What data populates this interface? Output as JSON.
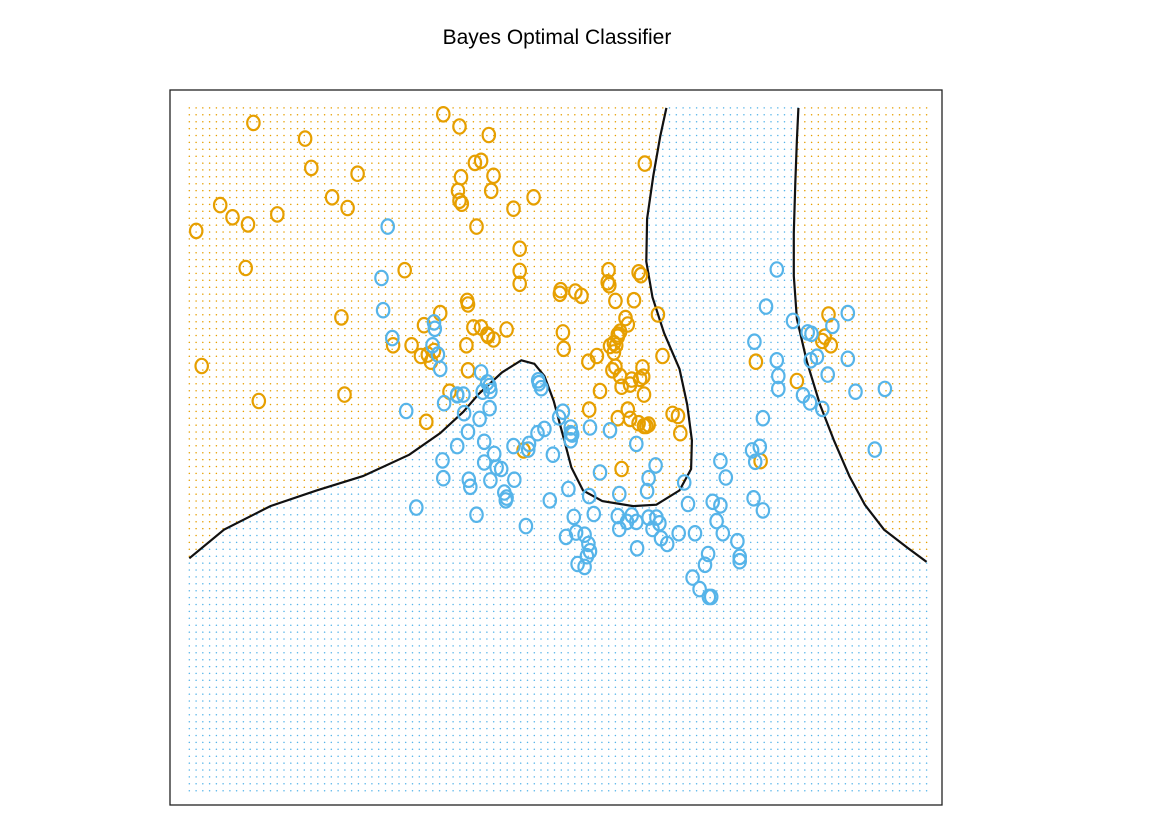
{
  "chart_data": {
    "type": "scatter",
    "title": "Bayes Optimal Classifier",
    "xlabel": "",
    "ylabel": "",
    "xlim": [
      0,
      1
    ],
    "ylim": [
      0,
      1
    ],
    "axes_ticks_shown": false,
    "grid_dots": true,
    "marker": "O",
    "colors": {
      "orange": "#E69F00",
      "blue": "#56B4E9",
      "boundary": "#111111"
    },
    "series": [
      {
        "color": "orange",
        "points": [
          [
            0.034,
            0.803
          ],
          [
            0.041,
            0.614
          ],
          [
            0.065,
            0.839
          ],
          [
            0.081,
            0.822
          ],
          [
            0.098,
            0.751
          ],
          [
            0.101,
            0.812
          ],
          [
            0.108,
            0.954
          ],
          [
            0.115,
            0.565
          ],
          [
            0.139,
            0.826
          ],
          [
            0.175,
            0.932
          ],
          [
            0.183,
            0.891
          ],
          [
            0.21,
            0.85
          ],
          [
            0.222,
            0.682
          ],
          [
            0.226,
            0.574
          ],
          [
            0.23,
            0.835
          ],
          [
            0.243,
            0.883
          ],
          [
            0.289,
            0.643
          ],
          [
            0.304,
            0.748
          ],
          [
            0.313,
            0.643
          ],
          [
            0.325,
            0.628
          ],
          [
            0.334,
            0.63
          ],
          [
            0.338,
            0.62
          ],
          [
            0.342,
            0.635
          ],
          [
            0.35,
            0.688
          ],
          [
            0.354,
            0.966
          ],
          [
            0.329,
            0.671
          ],
          [
            0.332,
            0.536
          ],
          [
            0.375,
            0.949
          ],
          [
            0.362,
            0.578
          ],
          [
            0.377,
            0.878
          ],
          [
            0.373,
            0.859
          ],
          [
            0.375,
            0.845
          ],
          [
            0.378,
            0.841
          ],
          [
            0.384,
            0.643
          ],
          [
            0.393,
            0.668
          ],
          [
            0.397,
            0.809
          ],
          [
            0.386,
            0.7
          ],
          [
            0.385,
            0.705
          ],
          [
            0.395,
            0.898
          ],
          [
            0.403,
            0.901
          ],
          [
            0.386,
            0.608
          ],
          [
            0.403,
            0.668
          ],
          [
            0.411,
            0.658
          ],
          [
            0.419,
            0.651
          ],
          [
            0.412,
            0.656
          ],
          [
            0.413,
            0.937
          ],
          [
            0.416,
            0.859
          ],
          [
            0.419,
            0.88
          ],
          [
            0.436,
            0.665
          ],
          [
            0.453,
            0.778
          ],
          [
            0.453,
            0.747
          ],
          [
            0.453,
            0.729
          ],
          [
            0.445,
            0.834
          ],
          [
            0.458,
            0.496
          ],
          [
            0.471,
            0.85
          ],
          [
            0.505,
            0.715
          ],
          [
            0.506,
            0.72
          ],
          [
            0.509,
            0.661
          ],
          [
            0.51,
            0.638
          ],
          [
            0.525,
            0.718
          ],
          [
            0.533,
            0.712
          ],
          [
            0.542,
            0.62
          ],
          [
            0.543,
            0.553
          ],
          [
            0.553,
            0.628
          ],
          [
            0.557,
            0.579
          ],
          [
            0.569,
            0.727
          ],
          [
            0.567,
            0.731
          ],
          [
            0.568,
            0.748
          ],
          [
            0.57,
            0.642
          ],
          [
            0.573,
            0.608
          ],
          [
            0.575,
            0.633
          ],
          [
            0.577,
            0.613
          ],
          [
            0.578,
            0.643
          ],
          [
            0.575,
            0.646
          ],
          [
            0.577,
            0.705
          ],
          [
            0.58,
            0.541
          ],
          [
            0.58,
            0.655
          ],
          [
            0.58,
            0.658
          ],
          [
            0.583,
            0.6
          ],
          [
            0.585,
            0.585
          ],
          [
            0.585,
            0.47
          ],
          [
            0.583,
            0.662
          ],
          [
            0.59,
            0.681
          ],
          [
            0.593,
            0.672
          ],
          [
            0.596,
            0.588
          ],
          [
            0.596,
            0.54
          ],
          [
            0.593,
            0.553
          ],
          [
            0.598,
            0.595
          ],
          [
            0.601,
            0.706
          ],
          [
            0.607,
            0.745
          ],
          [
            0.607,
            0.534
          ],
          [
            0.61,
            0.741
          ],
          [
            0.609,
            0.596
          ],
          [
            0.613,
            0.599
          ],
          [
            0.612,
            0.612
          ],
          [
            0.614,
            0.574
          ],
          [
            0.614,
            0.53
          ],
          [
            0.617,
            0.53
          ],
          [
            0.615,
            0.897
          ],
          [
            0.62,
            0.532
          ],
          [
            0.632,
            0.686
          ],
          [
            0.638,
            0.628
          ],
          [
            0.658,
            0.544
          ],
          [
            0.661,
            0.52
          ],
          [
            0.759,
            0.62
          ],
          [
            0.765,
            0.481
          ],
          [
            0.812,
            0.593
          ],
          [
            0.845,
            0.649
          ],
          [
            0.853,
            0.686
          ],
          [
            0.848,
            0.655
          ],
          [
            0.856,
            0.643
          ],
          [
            0.651,
            0.547
          ]
        ]
      },
      {
        "color": "blue",
        "points": [
          [
            0.282,
            0.809
          ],
          [
            0.274,
            0.737
          ],
          [
            0.276,
            0.692
          ],
          [
            0.288,
            0.653
          ],
          [
            0.306,
            0.551
          ],
          [
            0.319,
            0.416
          ],
          [
            0.34,
            0.643
          ],
          [
            0.347,
            0.63
          ],
          [
            0.343,
            0.666
          ],
          [
            0.342,
            0.675
          ],
          [
            0.35,
            0.61
          ],
          [
            0.355,
            0.562
          ],
          [
            0.354,
            0.457
          ],
          [
            0.353,
            0.482
          ],
          [
            0.372,
            0.573
          ],
          [
            0.372,
            0.574
          ],
          [
            0.372,
            0.502
          ],
          [
            0.38,
            0.574
          ],
          [
            0.381,
            0.548
          ],
          [
            0.386,
            0.522
          ],
          [
            0.387,
            0.455
          ],
          [
            0.389,
            0.445
          ],
          [
            0.397,
            0.406
          ],
          [
            0.401,
            0.54
          ],
          [
            0.403,
            0.605
          ],
          [
            0.405,
            0.578
          ],
          [
            0.414,
            0.586
          ],
          [
            0.415,
            0.579
          ],
          [
            0.407,
            0.479
          ],
          [
            0.407,
            0.508
          ],
          [
            0.411,
            0.591
          ],
          [
            0.414,
            0.555
          ],
          [
            0.415,
            0.454
          ],
          [
            0.42,
            0.491
          ],
          [
            0.423,
            0.472
          ],
          [
            0.429,
            0.47
          ],
          [
            0.433,
            0.437
          ],
          [
            0.436,
            0.43
          ],
          [
            0.435,
            0.426
          ],
          [
            0.445,
            0.502
          ],
          [
            0.446,
            0.455
          ],
          [
            0.461,
            0.39
          ],
          [
            0.464,
            0.497
          ],
          [
            0.465,
            0.505
          ],
          [
            0.476,
            0.52
          ],
          [
            0.477,
            0.594
          ],
          [
            0.485,
            0.526
          ],
          [
            0.478,
            0.59
          ],
          [
            0.481,
            0.583
          ],
          [
            0.492,
            0.426
          ],
          [
            0.496,
            0.49
          ],
          [
            0.504,
            0.542
          ],
          [
            0.509,
            0.55
          ],
          [
            0.513,
            0.375
          ],
          [
            0.519,
            0.51
          ],
          [
            0.521,
            0.518
          ],
          [
            0.519,
            0.52
          ],
          [
            0.519,
            0.528
          ],
          [
            0.516,
            0.442
          ],
          [
            0.523,
            0.403
          ],
          [
            0.526,
            0.381
          ],
          [
            0.528,
            0.337
          ],
          [
            0.537,
            0.378
          ],
          [
            0.542,
            0.365
          ],
          [
            0.544,
            0.355
          ],
          [
            0.537,
            0.333
          ],
          [
            0.54,
            0.348
          ],
          [
            0.543,
            0.432
          ],
          [
            0.544,
            0.528
          ],
          [
            0.549,
            0.407
          ],
          [
            0.557,
            0.465
          ],
          [
            0.57,
            0.524
          ],
          [
            0.58,
            0.404
          ],
          [
            0.582,
            0.435
          ],
          [
            0.582,
            0.386
          ],
          [
            0.592,
            0.396
          ],
          [
            0.598,
            0.405
          ],
          [
            0.604,
            0.505
          ],
          [
            0.604,
            0.396
          ],
          [
            0.605,
            0.359
          ],
          [
            0.62,
            0.457
          ],
          [
            0.62,
            0.402
          ],
          [
            0.618,
            0.439
          ],
          [
            0.625,
            0.386
          ],
          [
            0.629,
            0.475
          ],
          [
            0.63,
            0.402
          ],
          [
            0.634,
            0.394
          ],
          [
            0.636,
            0.373
          ],
          [
            0.644,
            0.365
          ],
          [
            0.659,
            0.38
          ],
          [
            0.666,
            0.451
          ],
          [
            0.671,
            0.421
          ],
          [
            0.677,
            0.318
          ],
          [
            0.68,
            0.38
          ],
          [
            0.686,
            0.302
          ],
          [
            0.693,
            0.336
          ],
          [
            0.698,
            0.291
          ],
          [
            0.697,
            0.351
          ],
          [
            0.701,
            0.291
          ],
          [
            0.708,
            0.397
          ],
          [
            0.713,
            0.419
          ],
          [
            0.703,
            0.424
          ],
          [
            0.713,
            0.481
          ],
          [
            0.72,
            0.458
          ],
          [
            0.716,
            0.38
          ],
          [
            0.738,
            0.347
          ],
          [
            0.735,
            0.369
          ],
          [
            0.738,
            0.341
          ],
          [
            0.758,
            0.48
          ],
          [
            0.756,
            0.429
          ],
          [
            0.768,
            0.412
          ],
          [
            0.788,
            0.6
          ],
          [
            0.786,
            0.622
          ],
          [
            0.807,
            0.677
          ],
          [
            0.826,
            0.661
          ],
          [
            0.83,
            0.622
          ],
          [
            0.845,
            0.554
          ],
          [
            0.829,
            0.563
          ],
          [
            0.82,
            0.573
          ],
          [
            0.831,
            0.659
          ],
          [
            0.838,
            0.627
          ],
          [
            0.852,
            0.602
          ],
          [
            0.858,
            0.67
          ],
          [
            0.878,
            0.624
          ],
          [
            0.888,
            0.578
          ],
          [
            0.913,
            0.497
          ],
          [
            0.926,
            0.582
          ],
          [
            0.878,
            0.688
          ],
          [
            0.786,
            0.749
          ],
          [
            0.772,
            0.697
          ],
          [
            0.757,
            0.648
          ],
          [
            0.788,
            0.582
          ],
          [
            0.754,
            0.496
          ],
          [
            0.764,
            0.501
          ],
          [
            0.768,
            0.541
          ]
        ]
      }
    ],
    "decision_boundary": [
      [
        [
          0.025,
          0.345
        ],
        [
          0.07,
          0.385
        ],
        [
          0.13,
          0.418
        ],
        [
          0.19,
          0.44
        ],
        [
          0.25,
          0.46
        ],
        [
          0.31,
          0.49
        ],
        [
          0.35,
          0.52
        ],
        [
          0.38,
          0.55
        ],
        [
          0.4,
          0.575
        ],
        [
          0.43,
          0.605
        ],
        [
          0.455,
          0.622
        ],
        [
          0.472,
          0.617
        ],
        [
          0.485,
          0.6
        ],
        [
          0.497,
          0.565
        ],
        [
          0.51,
          0.513
        ],
        [
          0.52,
          0.472
        ],
        [
          0.535,
          0.44
        ],
        [
          0.56,
          0.425
        ],
        [
          0.6,
          0.418
        ],
        [
          0.63,
          0.42
        ],
        [
          0.66,
          0.44
        ],
        [
          0.675,
          0.47
        ],
        [
          0.676,
          0.51
        ],
        [
          0.67,
          0.56
        ],
        [
          0.66,
          0.61
        ],
        [
          0.64,
          0.66
        ],
        [
          0.625,
          0.71
        ],
        [
          0.617,
          0.76
        ],
        [
          0.618,
          0.82
        ],
        [
          0.626,
          0.88
        ],
        [
          0.635,
          0.935
        ],
        [
          0.643,
          0.975
        ]
      ],
      [
        [
          0.814,
          0.975
        ],
        [
          0.812,
          0.93
        ],
        [
          0.81,
          0.87
        ],
        [
          0.808,
          0.8
        ],
        [
          0.808,
          0.74
        ],
        [
          0.812,
          0.68
        ],
        [
          0.825,
          0.62
        ],
        [
          0.842,
          0.56
        ],
        [
          0.86,
          0.51
        ],
        [
          0.88,
          0.46
        ],
        [
          0.9,
          0.42
        ],
        [
          0.925,
          0.385
        ],
        [
          0.955,
          0.36
        ],
        [
          0.98,
          0.34
        ]
      ]
    ]
  }
}
